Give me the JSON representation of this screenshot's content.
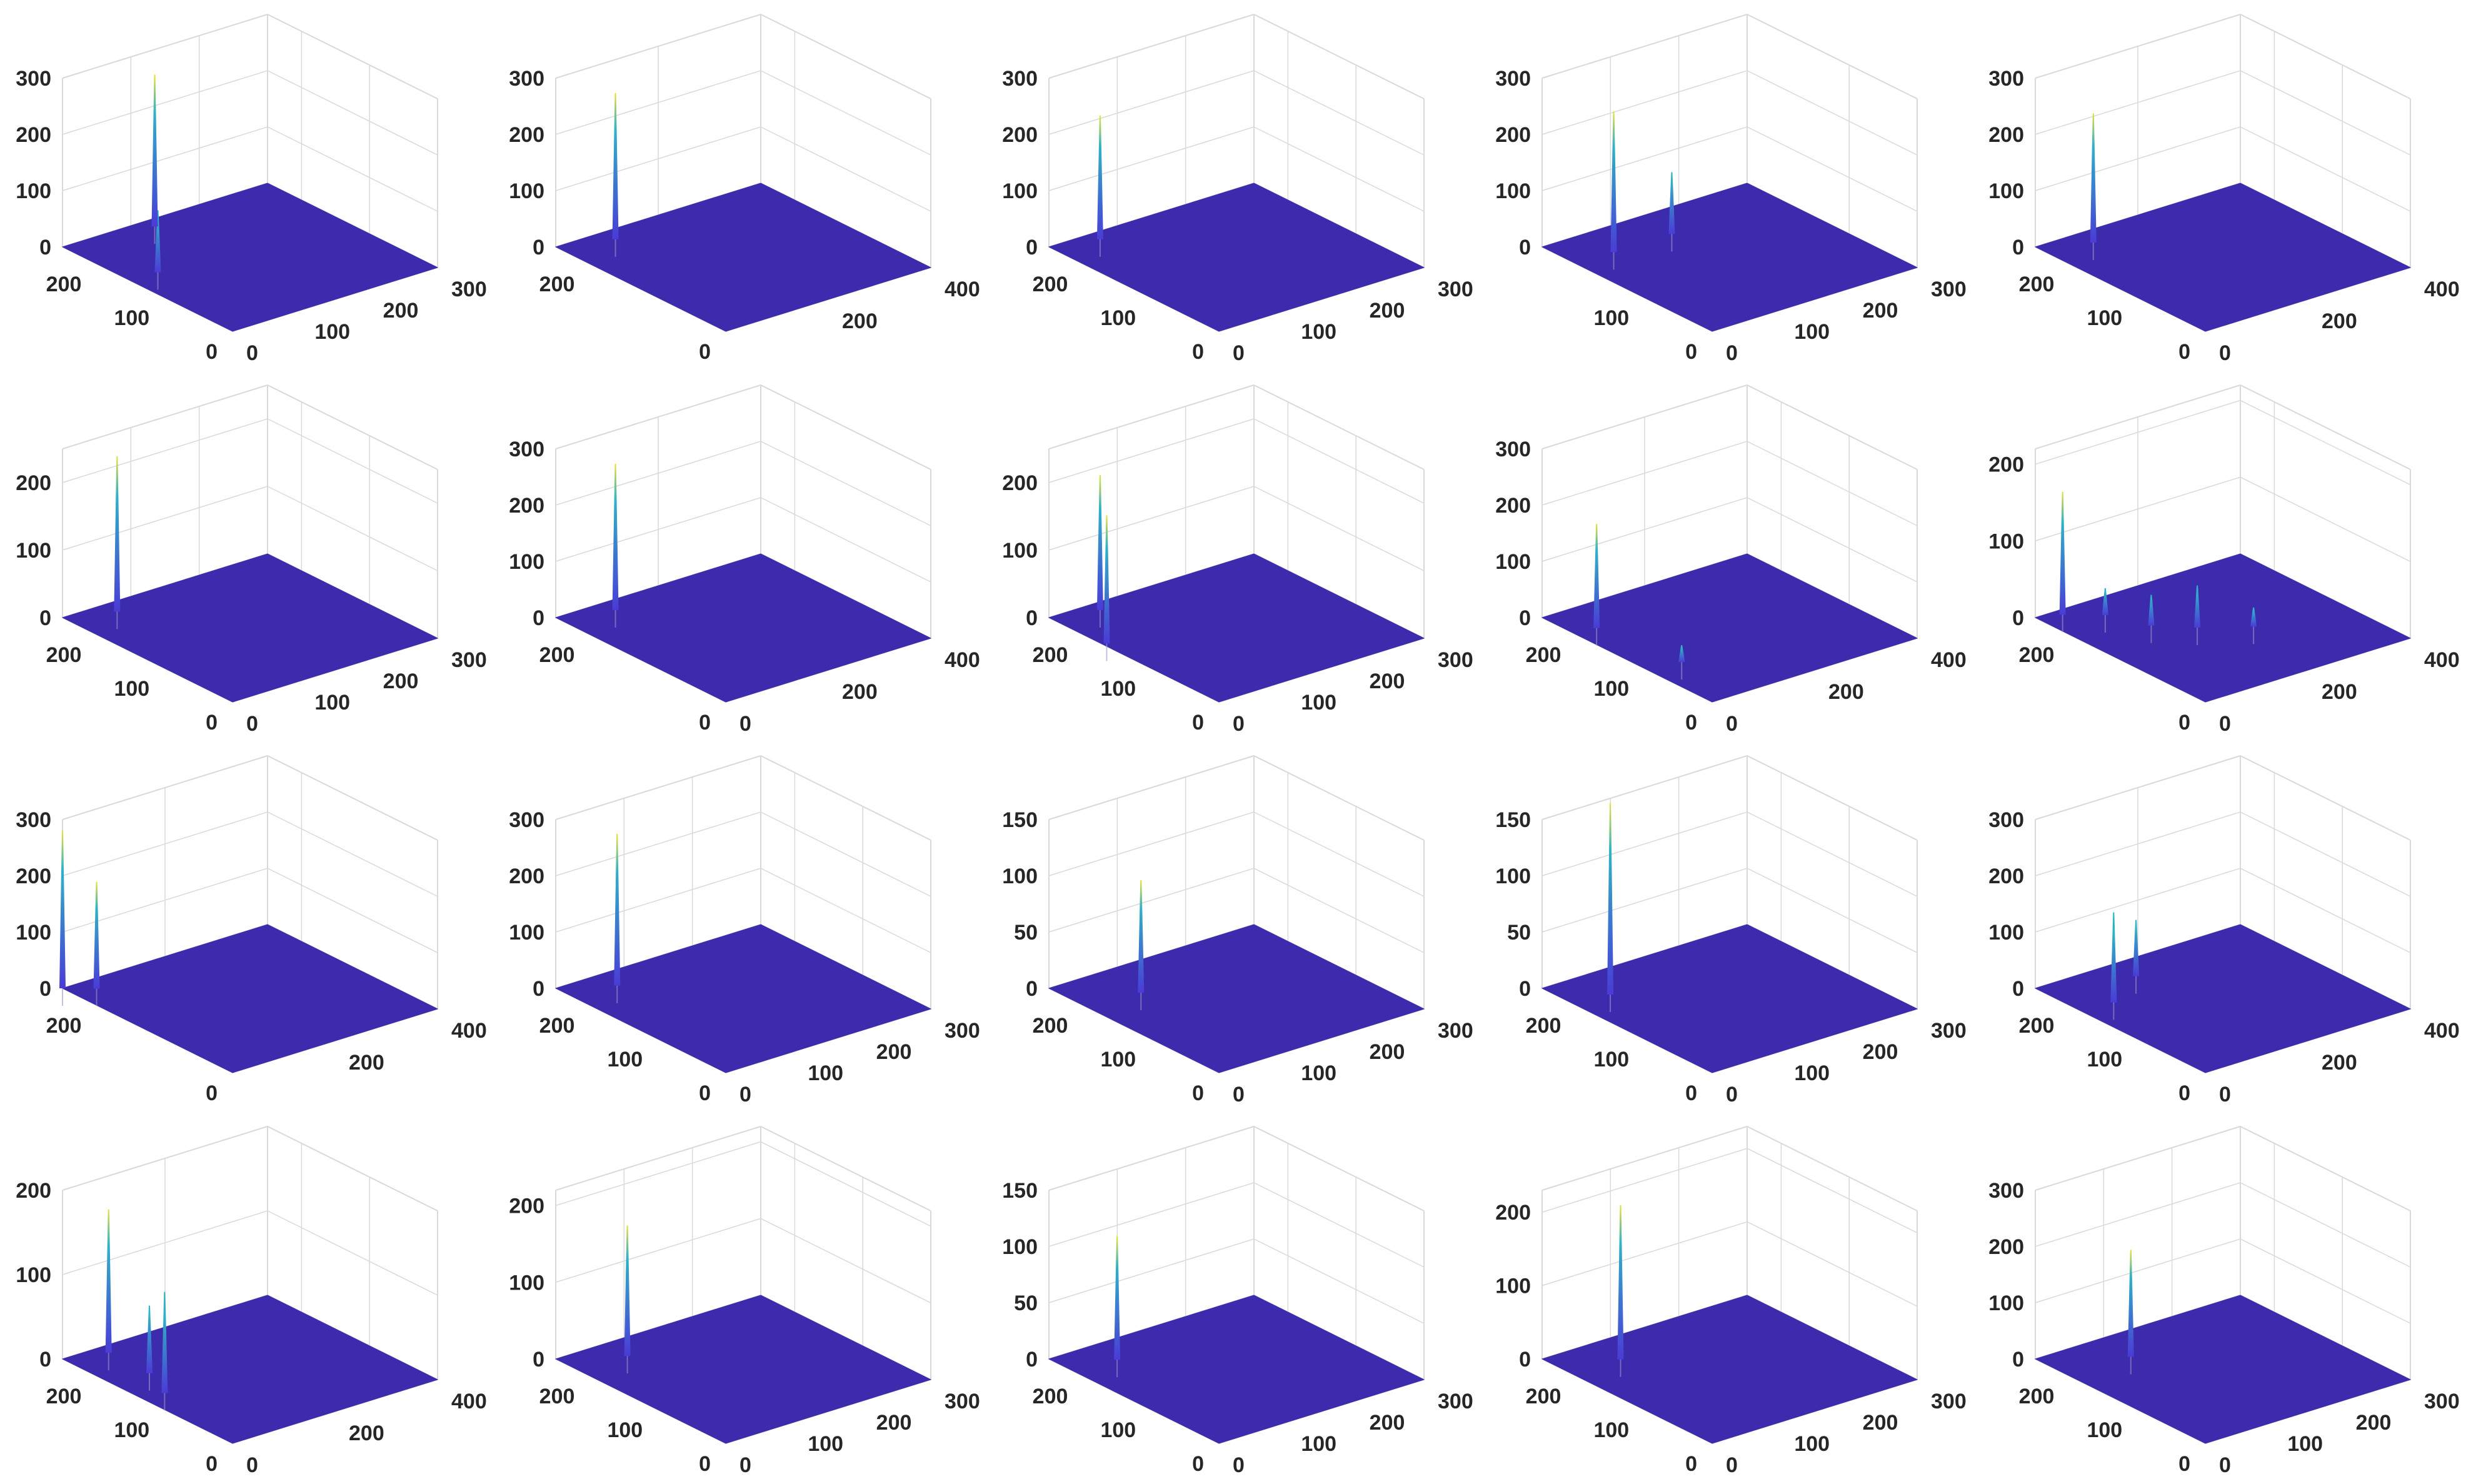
{
  "figure": {
    "rows": 4,
    "cols": 5,
    "colors": {
      "surface": "#3d2bae",
      "peak_low": "#4a3bd6",
      "peak_mid": "#2fb2c8",
      "peak_high": "#e8e033",
      "axis_line": "#d9d9d9",
      "tick_text": "#262626"
    }
  },
  "chart_data": [
    {
      "type": "surface",
      "z_ticks": [
        "0",
        "100",
        "200",
        "300"
      ],
      "zlim": [
        0,
        300
      ],
      "y_ticks": [
        "200",
        "100",
        "0"
      ],
      "ylim": [
        0,
        250
      ],
      "x_ticks": [
        "0",
        "100",
        "200",
        "300"
      ],
      "xlim": [
        0,
        300
      ],
      "peaks": [
        {
          "x": 40,
          "y": 150,
          "z": 110
        },
        {
          "x": 120,
          "y": 235,
          "z": 270
        }
      ]
    },
    {
      "type": "surface",
      "z_ticks": [
        "0",
        "100",
        "200",
        "300"
      ],
      "zlim": [
        0,
        300
      ],
      "y_ticks": [
        "200",
        "0"
      ],
      "ylim": [
        0,
        250
      ],
      "x_ticks": [
        "200",
        "400"
      ],
      "xlim": [
        0,
        400
      ],
      "peaks": [
        {
          "x": 90,
          "y": 230,
          "z": 260
        }
      ]
    },
    {
      "type": "surface",
      "z_ticks": [
        "0",
        "100",
        "200",
        "300"
      ],
      "zlim": [
        0,
        300
      ],
      "y_ticks": [
        "200",
        "100",
        "0"
      ],
      "ylim": [
        0,
        250
      ],
      "x_ticks": [
        "0",
        "100",
        "200",
        "300"
      ],
      "xlim": [
        0,
        300
      ],
      "peaks": [
        {
          "x": 60,
          "y": 235,
          "z": 220
        }
      ]
    },
    {
      "type": "surface",
      "z_ticks": [
        "0",
        "100",
        "200",
        "300"
      ],
      "zlim": [
        0,
        300
      ],
      "y_ticks": [
        "100",
        "0"
      ],
      "ylim": [
        0,
        250
      ],
      "x_ticks": [
        "0",
        "100",
        "200",
        "300"
      ],
      "xlim": [
        0,
        300
      ],
      "peaks": [
        {
          "x": 55,
          "y": 200,
          "z": 250
        },
        {
          "x": 140,
          "y": 200,
          "z": 110
        }
      ]
    },
    {
      "type": "surface",
      "z_ticks": [
        "0",
        "100",
        "200",
        "300"
      ],
      "zlim": [
        0,
        300
      ],
      "y_ticks": [
        "200",
        "100",
        "0"
      ],
      "ylim": [
        0,
        250
      ],
      "x_ticks": [
        "0",
        "200",
        "400"
      ],
      "xlim": [
        0,
        400
      ],
      "peaks": [
        {
          "x": 80,
          "y": 225,
          "z": 230
        }
      ]
    },
    {
      "type": "surface",
      "z_ticks": [
        "0",
        "100",
        "200"
      ],
      "zlim": [
        0,
        250
      ],
      "y_ticks": [
        "200",
        "100",
        "0"
      ],
      "ylim": [
        0,
        250
      ],
      "x_ticks": [
        "0",
        "100",
        "200",
        "300"
      ],
      "xlim": [
        0,
        300
      ],
      "peaks": [
        {
          "x": 60,
          "y": 230,
          "z": 230
        }
      ]
    },
    {
      "type": "surface",
      "z_ticks": [
        "0",
        "100",
        "200",
        "300"
      ],
      "zlim": [
        0,
        300
      ],
      "y_ticks": [
        "200",
        "0"
      ],
      "ylim": [
        0,
        250
      ],
      "x_ticks": [
        "0",
        "200",
        "400"
      ],
      "xlim": [
        0,
        400
      ],
      "peaks": [
        {
          "x": 90,
          "y": 230,
          "z": 260
        }
      ]
    },
    {
      "type": "surface",
      "z_ticks": [
        "0",
        "100",
        "200"
      ],
      "zlim": [
        0,
        250
      ],
      "y_ticks": [
        "200",
        "100",
        "0"
      ],
      "ylim": [
        0,
        250
      ],
      "x_ticks": [
        "0",
        "100",
        "200",
        "300"
      ],
      "xlim": [
        0,
        300
      ],
      "peaks": [
        {
          "x": 60,
          "y": 235,
          "z": 200
        },
        {
          "x": 5,
          "y": 170,
          "z": 190
        }
      ]
    },
    {
      "type": "surface",
      "z_ticks": [
        "0",
        "100",
        "200",
        "300"
      ],
      "zlim": [
        0,
        300
      ],
      "y_ticks": [
        "200",
        "100",
        "0"
      ],
      "ylim": [
        0,
        250
      ],
      "x_ticks": [
        "0",
        "200",
        "400"
      ],
      "xlim": [
        0,
        400
      ],
      "peaks": [
        {
          "x": 40,
          "y": 200,
          "z": 185
        },
        {
          "x": 60,
          "y": 90,
          "z": 30
        }
      ]
    },
    {
      "type": "surface",
      "z_ticks": [
        "0",
        "100",
        "200"
      ],
      "zlim": [
        0,
        220
      ],
      "y_ticks": [
        "200",
        "0"
      ],
      "ylim": [
        0,
        250
      ],
      "x_ticks": [
        "0",
        "200",
        "400"
      ],
      "xlim": [
        0,
        400
      ],
      "peaks": [
        {
          "x": 40,
          "y": 240,
          "z": 160
        },
        {
          "x": 90,
          "y": 215,
          "z": 35
        },
        {
          "x": 170,
          "y": 140,
          "z": 55
        },
        {
          "x": 240,
          "y": 110,
          "z": 25
        },
        {
          "x": 120,
          "y": 170,
          "z": 40
        }
      ]
    },
    {
      "type": "surface",
      "z_ticks": [
        "0",
        "100",
        "200",
        "300"
      ],
      "zlim": [
        0,
        300
      ],
      "y_ticks": [
        "200",
        "0"
      ],
      "ylim": [
        0,
        250
      ],
      "x_ticks": [
        "200",
        "400"
      ],
      "xlim": [
        0,
        400
      ],
      "peaks": [
        {
          "x": 0,
          "y": 250,
          "z": 280
        },
        {
          "x": 40,
          "y": 230,
          "z": 190
        }
      ]
    },
    {
      "type": "surface",
      "z_ticks": [
        "0",
        "100",
        "200",
        "300"
      ],
      "zlim": [
        0,
        300
      ],
      "y_ticks": [
        "200",
        "100",
        "0"
      ],
      "ylim": [
        0,
        250
      ],
      "x_ticks": [
        "0",
        "100",
        "200",
        "300"
      ],
      "xlim": [
        0,
        300
      ],
      "peaks": [
        {
          "x": 60,
          "y": 220,
          "z": 270
        }
      ]
    },
    {
      "type": "surface",
      "z_ticks": [
        "0",
        "50",
        "100",
        "150"
      ],
      "zlim": [
        0,
        150
      ],
      "y_ticks": [
        "200",
        "100",
        "0"
      ],
      "ylim": [
        0,
        250
      ],
      "x_ticks": [
        "0",
        "100",
        "200",
        "300"
      ],
      "xlim": [
        0,
        300
      ],
      "peaks": [
        {
          "x": 75,
          "y": 190,
          "z": 100
        }
      ]
    },
    {
      "type": "surface",
      "z_ticks": [
        "0",
        "50",
        "100",
        "150"
      ],
      "zlim": [
        0,
        150
      ],
      "y_ticks": [
        "200",
        "100",
        "0"
      ],
      "ylim": [
        0,
        250
      ],
      "x_ticks": [
        "0",
        "100",
        "200",
        "300"
      ],
      "xlim": [
        0,
        300
      ],
      "peaks": [
        {
          "x": 50,
          "y": 200,
          "z": 170
        }
      ]
    },
    {
      "type": "surface",
      "z_ticks": [
        "0",
        "100",
        "200",
        "300"
      ],
      "zlim": [
        0,
        300
      ],
      "y_ticks": [
        "200",
        "100",
        "0"
      ],
      "ylim": [
        0,
        250
      ],
      "x_ticks": [
        "0",
        "200",
        "400"
      ],
      "xlim": [
        0,
        400
      ],
      "peaks": [
        {
          "x": 60,
          "y": 180,
          "z": 160
        },
        {
          "x": 150,
          "y": 215,
          "z": 100
        }
      ]
    },
    {
      "type": "surface",
      "z_ticks": [
        "0",
        "100",
        "200"
      ],
      "zlim": [
        0,
        200
      ],
      "y_ticks": [
        "200",
        "100",
        "0"
      ],
      "ylim": [
        0,
        250
      ],
      "x_ticks": [
        "0",
        "200",
        "400"
      ],
      "xlim": [
        0,
        400
      ],
      "peaks": [
        {
          "x": 40,
          "y": 130,
          "z": 120
        },
        {
          "x": 70,
          "y": 175,
          "z": 80
        },
        {
          "x": 70,
          "y": 235,
          "z": 170
        }
      ]
    },
    {
      "type": "surface",
      "z_ticks": [
        "0",
        "100",
        "200"
      ],
      "zlim": [
        0,
        220
      ],
      "y_ticks": [
        "200",
        "100",
        "0"
      ],
      "ylim": [
        0,
        250
      ],
      "x_ticks": [
        "0",
        "100",
        "200",
        "300"
      ],
      "xlim": [
        0,
        300
      ],
      "peaks": [
        {
          "x": 70,
          "y": 215,
          "z": 170
        }
      ]
    },
    {
      "type": "surface",
      "z_ticks": [
        "0",
        "50",
        "100",
        "150"
      ],
      "zlim": [
        0,
        150
      ],
      "y_ticks": [
        "200",
        "100",
        "0"
      ],
      "ylim": [
        0,
        250
      ],
      "x_ticks": [
        "0",
        "100",
        "200",
        "300"
      ],
      "xlim": [
        0,
        300
      ],
      "peaks": [
        {
          "x": 60,
          "y": 210,
          "z": 110
        }
      ]
    },
    {
      "type": "surface",
      "z_ticks": [
        "0",
        "100",
        "200"
      ],
      "zlim": [
        0,
        230
      ],
      "y_ticks": [
        "200",
        "100",
        "0"
      ],
      "ylim": [
        0,
        250
      ],
      "x_ticks": [
        "0",
        "100",
        "200",
        "300"
      ],
      "xlim": [
        0,
        300
      ],
      "peaks": [
        {
          "x": 70,
          "y": 205,
          "z": 210
        }
      ]
    },
    {
      "type": "surface",
      "z_ticks": [
        "0",
        "100",
        "200",
        "300"
      ],
      "zlim": [
        0,
        300
      ],
      "y_ticks": [
        "200",
        "100",
        "0"
      ],
      "ylim": [
        0,
        250
      ],
      "x_ticks": [
        "0",
        "100",
        "200",
        "300"
      ],
      "xlim": [
        0,
        300
      ],
      "peaks": [
        {
          "x": 90,
          "y": 200,
          "z": 190
        }
      ]
    }
  ]
}
